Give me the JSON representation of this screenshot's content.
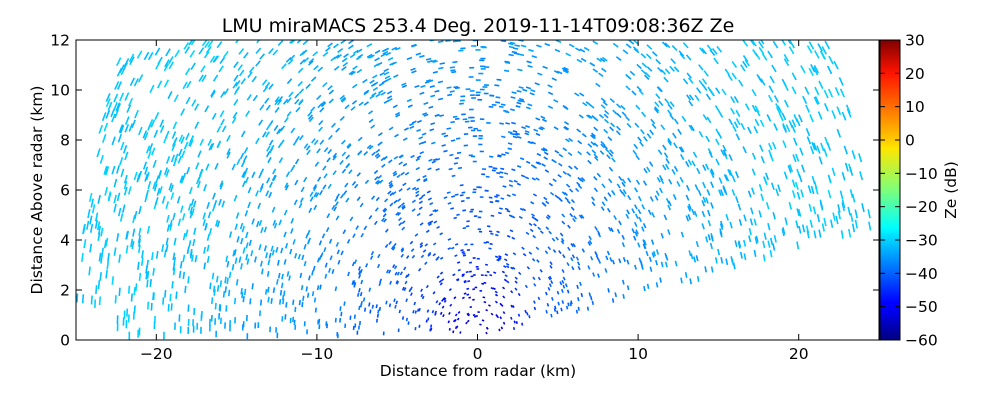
{
  "chart_data": {
    "type": "heatmap",
    "subtype": "radar RHI scan (range-height)",
    "title": "LMU miraMACS 253.4 Deg. 2019-11-14T09:08:36Z  Ze",
    "xlabel": "Distance from radar (km)",
    "ylabel": "Distance Above radar  (km)",
    "xlim": [
      -25,
      25
    ],
    "ylim": [
      0,
      12
    ],
    "x_ticks": [
      -20,
      -10,
      0,
      10,
      20
    ],
    "x_tick_labels": [
      "−20",
      "−10",
      "0",
      "10",
      "20"
    ],
    "y_ticks": [
      0,
      2,
      4,
      6,
      8,
      10,
      12
    ],
    "y_tick_labels": [
      "0",
      "2",
      "4",
      "6",
      "8",
      "10",
      "12"
    ],
    "grid": false,
    "colorbar": {
      "label": "Ze (dB)",
      "colormap": "jet",
      "range": [
        -60,
        30
      ],
      "ticks": [
        30,
        20,
        10,
        0,
        -10,
        -20,
        -30,
        -40,
        -50,
        -60
      ],
      "tick_labels": [
        "30",
        "20",
        "10",
        "0",
        "−10",
        "−20",
        "−30",
        "−40",
        "−50",
        "−60"
      ]
    },
    "field": {
      "description": "speckled noise echo filling a fan from the radar at (0,0); reflectivity increases with range",
      "max_range_km": 25,
      "right_edge_min_elevation_deg": 10,
      "ze_near_radar_db": -55,
      "ze_at_4km_db": -42,
      "ze_at_12km_db": -35,
      "ze_at_20km_db": -31
    }
  }
}
